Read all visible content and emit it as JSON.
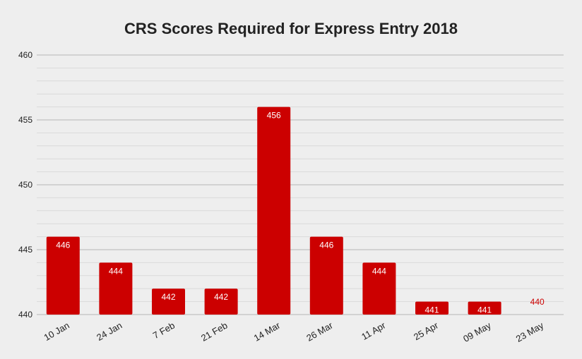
{
  "chart_data": {
    "type": "bar",
    "title": "CRS Scores Required for Express Entry 2018",
    "xlabel": "",
    "ylabel": "",
    "categories": [
      "10 Jan",
      "24 Jan",
      "7 Feb",
      "21 Feb",
      "14 Mar",
      "26 Mar",
      "11 Apr",
      "25 Apr",
      "09 May",
      "23 May"
    ],
    "values": [
      446,
      444,
      442,
      442,
      456,
      446,
      444,
      441,
      441,
      440
    ],
    "ylim": [
      440,
      460
    ],
    "yticks": [
      "440",
      "445",
      "450",
      "455",
      "460"
    ],
    "grid": true,
    "legend": "none",
    "colors": {
      "bar": "#cc0000",
      "bar_label_inside": "#ffffff",
      "bar_label_outside": "#cc0000",
      "grid_major": "#b7b7b7",
      "grid_minor": "#d9d9d9",
      "background": "#eeeeee",
      "text": "#222222"
    }
  }
}
